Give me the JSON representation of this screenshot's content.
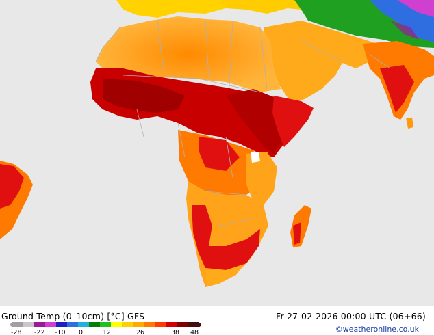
{
  "map": {
    "title": "Ground Temp (0–10cm) [°C] GFS",
    "valid_time": "Fr 27-02-2026 00:00 UTC (06+66)",
    "credit": "©weatheronline.co.uk",
    "legend": {
      "tick_labels": [
        "-28",
        "-22",
        "-10",
        "0",
        "12",
        "26",
        "38",
        "48"
      ],
      "colors": [
        "#a0a0a0",
        "#c8c8c8",
        "#9a1a9a",
        "#d040d0",
        "#2020c0",
        "#2f6ee0",
        "#20b0e0",
        "#008000",
        "#20c020",
        "#ffff00",
        "#ffd000",
        "#ffaa00",
        "#ff7a00",
        "#ff3c00",
        "#d20000",
        "#800000",
        "#401010"
      ]
    },
    "colors": {
      "ocean": "#e8e8e8",
      "sahara_orange": "#ffa31a",
      "hot_red": "#e01010",
      "dark_red": "#b00000",
      "green_north": "#20a020",
      "border": "#b0b0b0"
    }
  }
}
